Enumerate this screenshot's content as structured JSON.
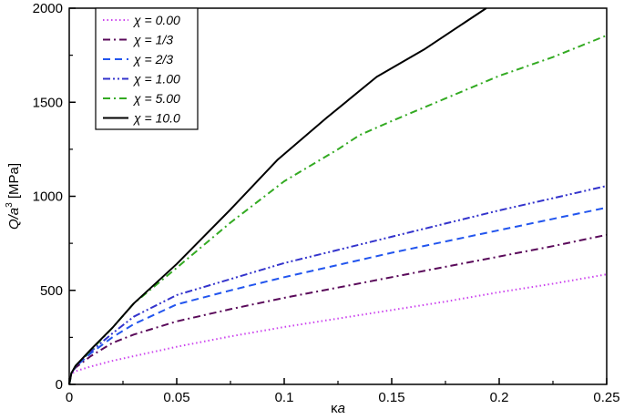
{
  "chart_data": {
    "type": "line",
    "title": "",
    "xlabel": {
      "main": "κ",
      "italic": "a"
    },
    "ylabel": {
      "pre": "Q/a",
      "sup": "3",
      "post": " [MPa]"
    },
    "xlim": [
      0,
      0.25
    ],
    "ylim": [
      0,
      2000
    ],
    "xticks": [
      0,
      0.05,
      0.1,
      0.15,
      0.2,
      0.25
    ],
    "xtick_labels": [
      "0",
      "0.05",
      "0.1",
      "0.15",
      "0.2",
      "0.25"
    ],
    "yticks": [
      0,
      500,
      1000,
      1500,
      2000
    ],
    "ytick_labels": [
      "0",
      "500",
      "1000",
      "1500",
      "2000"
    ],
    "grid": false,
    "legend_position": "top-left",
    "series": [
      {
        "name": "χ = 0.00",
        "color": "#cc44ee",
        "dash": "dotted",
        "x": [
          0,
          0.001,
          0.003,
          0.01,
          0.02,
          0.03,
          0.05,
          0.075,
          0.1,
          0.125,
          0.15,
          0.175,
          0.2,
          0.225,
          0.25
        ],
        "y": [
          0,
          55,
          70,
          95,
          125,
          150,
          200,
          255,
          305,
          350,
          395,
          440,
          490,
          535,
          585
        ]
      },
      {
        "name": "χ = 1/3",
        "color": "#5a0a5a",
        "dash": "dash-dot",
        "x": [
          0,
          0.001,
          0.003,
          0.01,
          0.02,
          0.03,
          0.05,
          0.075,
          0.1,
          0.125,
          0.15,
          0.175,
          0.2,
          0.225,
          0.25
        ],
        "y": [
          0,
          60,
          90,
          150,
          220,
          265,
          335,
          400,
          460,
          515,
          570,
          625,
          680,
          735,
          795
        ]
      },
      {
        "name": "χ = 2/3",
        "color": "#2255ee",
        "dash": "dashed",
        "x": [
          0,
          0.001,
          0.003,
          0.01,
          0.02,
          0.03,
          0.05,
          0.075,
          0.1,
          0.125,
          0.15,
          0.175,
          0.2,
          0.225,
          0.25
        ],
        "y": [
          0,
          60,
          95,
          165,
          250,
          320,
          425,
          500,
          570,
          635,
          700,
          760,
          820,
          880,
          940
        ]
      },
      {
        "name": "χ = 1.00",
        "color": "#3333cc",
        "dash": "dash-dot-dot",
        "x": [
          0,
          0.001,
          0.003,
          0.01,
          0.02,
          0.03,
          0.05,
          0.075,
          0.1,
          0.125,
          0.15,
          0.175,
          0.2,
          0.225,
          0.25
        ],
        "y": [
          0,
          60,
          98,
          175,
          270,
          360,
          475,
          560,
          645,
          715,
          785,
          855,
          925,
          990,
          1055
        ]
      },
      {
        "name": "χ = 5.00",
        "color": "#33aa22",
        "dash": "dash-dot",
        "x": [
          0,
          0.001,
          0.003,
          0.01,
          0.02,
          0.03,
          0.05,
          0.075,
          0.1,
          0.125,
          0.135,
          0.15,
          0.175,
          0.2,
          0.225,
          0.25
        ],
        "y": [
          0,
          60,
          100,
          180,
          300,
          430,
          620,
          860,
          1080,
          1250,
          1325,
          1400,
          1520,
          1640,
          1740,
          1855
        ]
      },
      {
        "name": "χ = 10.0",
        "color": "#000000",
        "dash": "solid",
        "x": [
          0,
          0.001,
          0.003,
          0.01,
          0.02,
          0.03,
          0.05,
          0.075,
          0.097,
          0.12,
          0.143,
          0.165,
          0.194
        ],
        "y": [
          0,
          60,
          100,
          185,
          300,
          430,
          640,
          930,
          1195,
          1420,
          1635,
          1780,
          2000
        ]
      }
    ]
  }
}
